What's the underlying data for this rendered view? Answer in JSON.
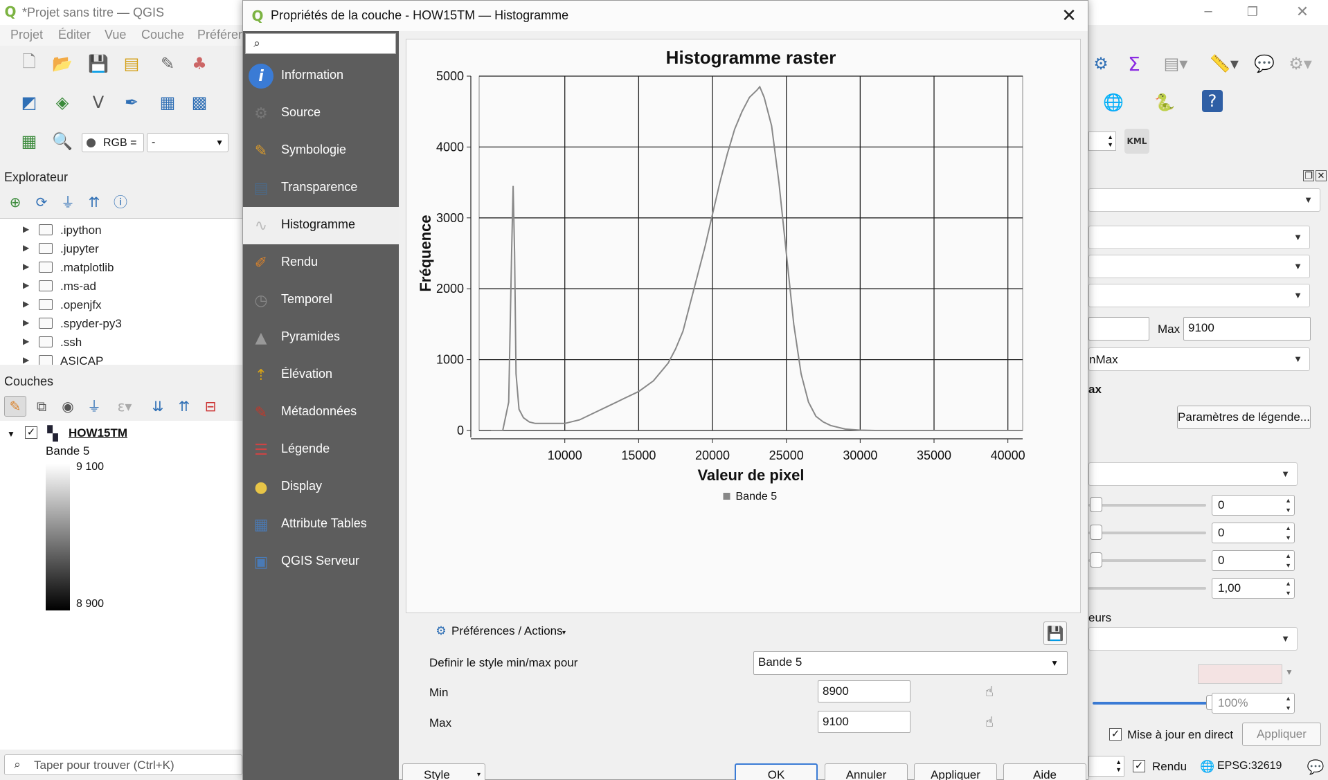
{
  "main_window": {
    "title": "*Projet sans titre — QGIS",
    "menu": [
      "Projet",
      "Éditer",
      "Vue",
      "Couche",
      "Préféren"
    ],
    "window_controls": [
      "─",
      "❐",
      "✕"
    ]
  },
  "toolbar": {
    "rgb_label": "RGB =",
    "rgb_value": "-",
    "kml_label": "KML"
  },
  "explorer": {
    "title": "Explorateur",
    "items": [
      ".ipython",
      ".jupyter",
      ".matplotlib",
      ".ms-ad",
      ".openjfx",
      ".spyder-py3",
      ".ssh",
      "ASICAP"
    ]
  },
  "layers": {
    "title": "Couches",
    "layer_name": "HOW15TM",
    "band_name": "Bande 5",
    "max_value": "9 100",
    "min_value": "8 900"
  },
  "locator": {
    "placeholder": "Taper pour trouver (Ctrl+K)"
  },
  "right_panel": {
    "max_label": "Max",
    "max_value": "9100",
    "minmax_text": "nMax",
    "ax_text": "ax",
    "legend_btn": "Paramètres de légende...",
    "spin_values": [
      "0",
      "0",
      "0",
      "1,00"
    ],
    "eurs_text": "eurs",
    "opacity_value": "100%",
    "live_update_label": "Mise à jour en direct",
    "apply_label": "Appliquer"
  },
  "statusbar": {
    "render_label": "Rendu",
    "crs_label": "EPSG:32619"
  },
  "dialog": {
    "title": "Propriétés de la couche - HOW15TM — Histogramme",
    "close": "✕",
    "sidebar": [
      {
        "label": "Information",
        "icon": "info-icon",
        "glyph": "i",
        "color": "#3a7bd5"
      },
      {
        "label": "Source",
        "icon": "wrench-icon",
        "glyph": "⚙",
        "color": "#777"
      },
      {
        "label": "Symbologie",
        "icon": "paintbrush-icon",
        "glyph": "✎",
        "color": "#d99a2b"
      },
      {
        "label": "Transparence",
        "icon": "transparency-icon",
        "glyph": "▤",
        "color": "#4a6a8a"
      },
      {
        "label": "Histogramme",
        "icon": "histogram-icon",
        "glyph": "∿",
        "color": "#bbb"
      },
      {
        "label": "Rendu",
        "icon": "render-brush-icon",
        "glyph": "✐",
        "color": "#d9822b"
      },
      {
        "label": "Temporel",
        "icon": "clock-icon",
        "glyph": "◷",
        "color": "#888"
      },
      {
        "label": "Pyramides",
        "icon": "pyramid-icon",
        "glyph": "▲",
        "color": "#999"
      },
      {
        "label": "Élévation",
        "icon": "elevation-icon",
        "glyph": "⇡",
        "color": "#d4a017"
      },
      {
        "label": "Métadonnées",
        "icon": "metadata-icon",
        "glyph": "✎",
        "color": "#c0392b"
      },
      {
        "label": "Légende",
        "icon": "legend-icon",
        "glyph": "☰",
        "color": "#c44"
      },
      {
        "label": "Display",
        "icon": "display-bubble-icon",
        "glyph": "●",
        "color": "#e8c547"
      },
      {
        "label": "Attribute Tables",
        "icon": "table-icon",
        "glyph": "▦",
        "color": "#4a7ab5"
      },
      {
        "label": "QGIS Serveur",
        "icon": "server-icon",
        "glyph": "▣",
        "color": "#4a7ab5"
      }
    ],
    "prefs_label": "Préférences / Actions",
    "minmax_for_label": "Definir le style min/max pour",
    "band_select": "Bande 5",
    "min_label": "Min",
    "min_value": "8900",
    "max_label": "Max",
    "max_value": "9100",
    "buttons": {
      "style": "Style",
      "ok": "OK",
      "cancel": "Annuler",
      "apply": "Appliquer",
      "help": "Aide"
    }
  },
  "chart_data": {
    "type": "line",
    "title": "Histogramme raster",
    "xlabel": "Valeur de pixel",
    "ylabel": "Fréquence",
    "xlim": [
      4200,
      41000
    ],
    "ylim": [
      0,
      5000
    ],
    "xticks": [
      10000,
      15000,
      20000,
      25000,
      30000,
      35000,
      40000
    ],
    "yticks": [
      0,
      1000,
      2000,
      3000,
      4000,
      5000
    ],
    "grid": true,
    "legend": "bottom-center",
    "series": [
      {
        "name": "Bande 5",
        "color": "#888888",
        "x": [
          5000,
          5800,
          6200,
          6400,
          6500,
          6600,
          6700,
          6900,
          7200,
          7600,
          8000,
          9000,
          10000,
          11000,
          12000,
          13000,
          14000,
          15000,
          16000,
          17000,
          17500,
          18000,
          18500,
          19000,
          19500,
          20000,
          20500,
          21000,
          21500,
          22000,
          22500,
          23000,
          23200,
          23500,
          24000,
          24500,
          25000,
          25500,
          26000,
          26500,
          27000,
          27500,
          28000,
          29000,
          30000,
          31000,
          33000,
          35000,
          38000,
          41000
        ],
        "y": [
          0,
          0,
          400,
          2500,
          3450,
          2500,
          800,
          300,
          180,
          120,
          100,
          100,
          100,
          150,
          250,
          350,
          450,
          550,
          700,
          950,
          1150,
          1400,
          1800,
          2200,
          2600,
          3050,
          3500,
          3900,
          4250,
          4500,
          4700,
          4800,
          4850,
          4700,
          4300,
          3500,
          2500,
          1500,
          800,
          400,
          200,
          120,
          70,
          20,
          5,
          0,
          0,
          0,
          0,
          0
        ]
      }
    ]
  }
}
